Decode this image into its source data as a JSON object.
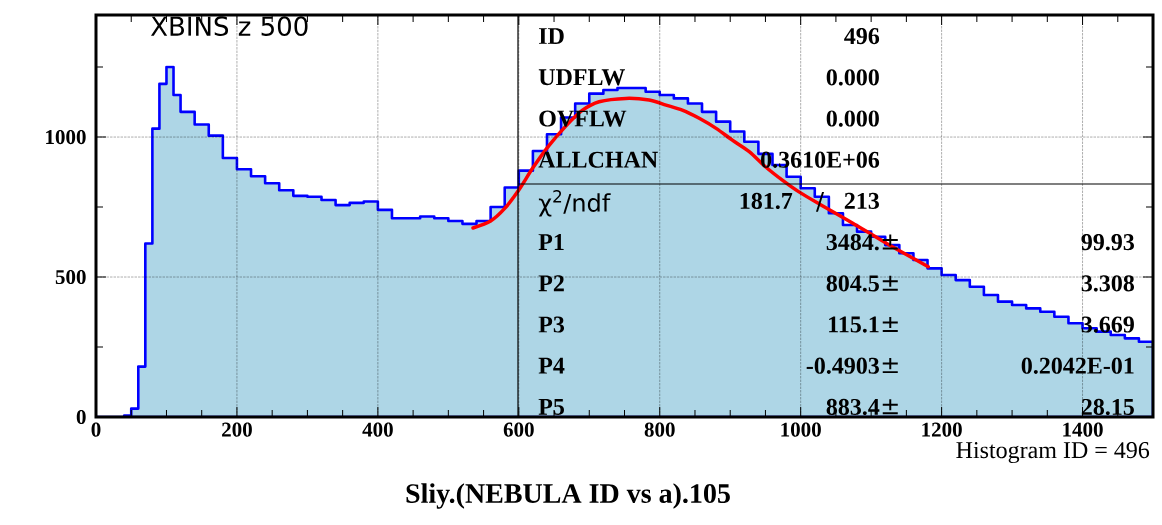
{
  "chart_data": {
    "type": "histogram",
    "title": "Sliy.(NEBULA ID vs a).105",
    "series": [
      {
        "type": "histogram",
        "color": "#aed6e6",
        "values": [
          0,
          0,
          5,
          30,
          180,
          620,
          1030,
          1190,
          1250,
          1150,
          1090,
          1045,
          1005,
          925,
          885,
          860,
          835,
          810,
          790,
          787,
          775,
          757,
          765,
          770,
          740,
          710,
          710,
          716,
          710,
          700,
          690,
          700,
          750,
          820,
          880,
          950,
          1010,
          1070,
          1120,
          1155,
          1168,
          1175,
          1175,
          1162,
          1150,
          1138,
          1120,
          1090,
          1055,
          1020,
          983,
          940,
          900,
          858,
          817,
          787,
          728,
          686,
          662,
          644,
          614,
          585,
          561,
          531,
          507,
          489,
          465,
          436,
          412,
          400,
          388,
          376,
          358,
          335,
          317,
          305,
          293,
          281,
          269
        ]
      },
      {
        "type": "line",
        "color": "#ff0000",
        "x": [
          535,
          560,
          580,
          600,
          620,
          643,
          667,
          690,
          714,
          752,
          785,
          809,
          832,
          856,
          880,
          903,
          927,
          950,
          974,
          997,
          1027,
          1074,
          1122,
          1181
        ],
        "values": [
          675,
          700,
          745,
          811,
          890,
          970,
          1040,
          1095,
          1126,
          1138,
          1132,
          1114,
          1096,
          1067,
          1031,
          989,
          948,
          894,
          846,
          805,
          760,
          692,
          620,
          537
        ]
      }
    ],
    "bins": [
      0,
      20,
      40,
      50,
      60,
      70,
      80,
      90,
      100,
      110,
      120,
      140,
      160,
      180,
      200,
      220,
      240,
      260,
      280,
      300,
      320,
      340,
      360,
      380,
      400,
      420,
      440,
      460,
      480,
      500,
      520,
      540,
      560,
      580,
      600,
      620,
      640,
      660,
      680,
      700,
      720,
      740,
      760,
      780,
      800,
      820,
      840,
      860,
      880,
      900,
      920,
      940,
      960,
      980,
      1000,
      1020,
      1040,
      1060,
      1080,
      1100,
      1120,
      1140,
      1160,
      1180,
      1200,
      1220,
      1240,
      1260,
      1280,
      1300,
      1320,
      1340,
      1360,
      1380,
      1400,
      1420,
      1440,
      1460,
      1480,
      1500
    ],
    "xlim": [
      0,
      1500
    ],
    "ylim": [
      0,
      1436
    ],
    "xticks": [
      0,
      {
        "value": 50,
        "label": null
      },
      {
        "value": 100,
        "label": null
      },
      {
        "value": 150,
        "label": null
      },
      200,
      {
        "value": 250,
        "label": null
      },
      {
        "value": 300,
        "label": null
      },
      {
        "value": 350,
        "label": null
      },
      400,
      {
        "value": 450,
        "label": null
      },
      {
        "value": 500,
        "label": null
      },
      {
        "value": 550,
        "label": null
      },
      600,
      {
        "value": 650,
        "label": null
      },
      {
        "value": 700,
        "label": null
      },
      {
        "value": 750,
        "label": null
      },
      800,
      {
        "value": 850,
        "label": null
      },
      {
        "value": 900,
        "label": null
      },
      {
        "value": 950,
        "label": null
      },
      1000,
      {
        "value": 1050,
        "label": null
      },
      {
        "value": 1100,
        "label": null
      },
      {
        "value": 1150,
        "label": null
      },
      1200,
      {
        "value": 1250,
        "label": null
      },
      {
        "value": 1300,
        "label": null
      },
      {
        "value": 1350,
        "label": null
      },
      1400,
      {
        "value": 1450,
        "label": null
      }
    ],
    "yticks": [
      0,
      {
        "value": 250,
        "label": null
      },
      500,
      {
        "value": 750,
        "label": null
      },
      1000,
      {
        "value": 1250,
        "label": null
      }
    ],
    "grid": true,
    "annotations": [
      "XBINS z 500",
      "Histogram ID =   496",
      "ID",
      "496",
      "UDFLW",
      "0.000",
      "OVFLW",
      "0.000",
      "ALLCHAN",
      "0.3610E+06",
      "χ$^{2}$/ndf",
      "181.7",
      "/",
      "213",
      "P1",
      "3484.",
      "±",
      "99.93",
      "P2",
      "804.5",
      "±",
      "3.308",
      "P3",
      "115.1",
      "±",
      "3.669",
      "P4",
      "-0.4903",
      "±",
      "0.2042E-01",
      "P5",
      "883.4",
      "±",
      "28.15"
    ]
  }
}
